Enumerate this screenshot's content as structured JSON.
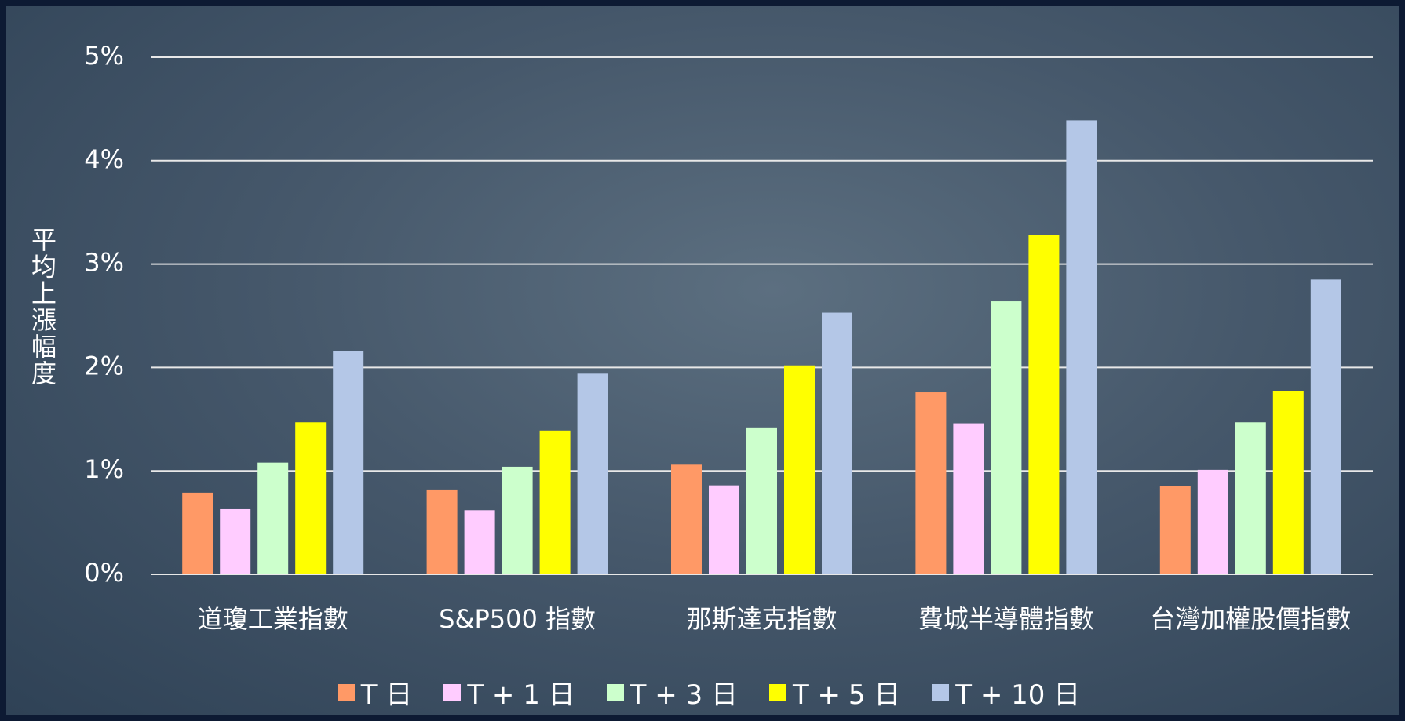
{
  "chart_data": {
    "type": "bar",
    "y_label": "平均上漲幅度",
    "categories": [
      "道瓊工業指數",
      "S&P500 指數",
      "那斯達克指數",
      "費城半導體指數",
      "台灣加權股價指數"
    ],
    "series": [
      {
        "name": "T 日",
        "color": "#ff9966",
        "values": [
          0.79,
          0.82,
          1.06,
          1.76,
          0.85
        ]
      },
      {
        "name": "T + 1 日",
        "color": "#ffccff",
        "values": [
          0.63,
          0.62,
          0.86,
          1.46,
          1.01
        ]
      },
      {
        "name": "T + 3 日",
        "color": "#ccffcc",
        "values": [
          1.08,
          1.04,
          1.42,
          2.64,
          1.47
        ]
      },
      {
        "name": "T + 5 日",
        "color": "#ffff00",
        "values": [
          1.47,
          1.39,
          2.02,
          3.28,
          1.77
        ]
      },
      {
        "name": "T + 10 日",
        "color": "#b4c7e7",
        "values": [
          2.16,
          1.94,
          2.53,
          4.39,
          2.85
        ]
      }
    ],
    "ylim": [
      0,
      5
    ],
    "yticks": [
      {
        "value": 0,
        "label": "0%"
      },
      {
        "value": 1,
        "label": "1%"
      },
      {
        "value": 2,
        "label": "2%"
      },
      {
        "value": 3,
        "label": "3%"
      },
      {
        "value": 4,
        "label": "4%"
      },
      {
        "value": 5,
        "label": "5%"
      }
    ],
    "grid": true
  }
}
